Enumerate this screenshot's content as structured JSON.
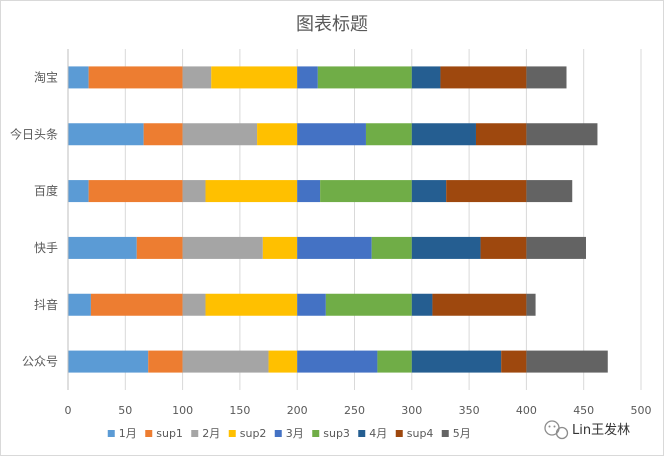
{
  "chart_data": {
    "type": "bar",
    "orientation": "horizontal",
    "stacked": true,
    "title": "图表标题",
    "xlabel": "",
    "ylabel": "",
    "xlim": [
      0,
      500
    ],
    "xticks": [
      0,
      50,
      100,
      150,
      200,
      250,
      300,
      350,
      400,
      450,
      500
    ],
    "grid": true,
    "legend": "bottom",
    "categories": [
      "淘宝",
      "今日头条",
      "百度",
      "快手",
      "抖音",
      "公众号"
    ],
    "series": [
      {
        "name": "1月",
        "color": "#5b9bd5",
        "values": [
          18,
          66,
          18,
          60,
          20,
          70
        ]
      },
      {
        "name": "sup1",
        "color": "#ed7d31",
        "values": [
          82,
          34,
          82,
          40,
          80,
          30
        ]
      },
      {
        "name": "2月",
        "color": "#a5a5a5",
        "values": [
          25,
          65,
          20,
          70,
          20,
          75
        ]
      },
      {
        "name": "sup2",
        "color": "#ffc000",
        "values": [
          75,
          35,
          80,
          30,
          80,
          25
        ]
      },
      {
        "name": "3月",
        "color": "#4472c4",
        "values": [
          18,
          60,
          20,
          65,
          25,
          70
        ]
      },
      {
        "name": "sup3",
        "color": "#70ad47",
        "values": [
          82,
          40,
          80,
          35,
          75,
          30
        ]
      },
      {
        "name": "4月",
        "color": "#255e91",
        "values": [
          25,
          56,
          30,
          60,
          18,
          78
        ]
      },
      {
        "name": "sup4",
        "color": "#9e480e",
        "values": [
          75,
          44,
          70,
          40,
          82,
          22
        ]
      },
      {
        "name": "5月",
        "color": "#636363",
        "values": [
          35,
          62,
          40,
          52,
          8,
          71
        ]
      }
    ]
  },
  "watermark": {
    "text": "Lin王发林"
  }
}
